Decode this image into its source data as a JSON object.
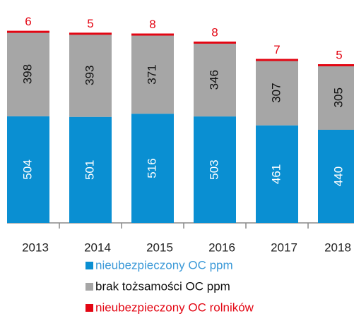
{
  "chart_data": {
    "type": "stacked_bar",
    "categories": [
      "2013",
      "2014",
      "2015",
      "2016",
      "2017",
      "2018"
    ],
    "series": [
      {
        "name": "nieubezpieczony OC ppm",
        "color": "#0a8fd2",
        "values": [
          504,
          501,
          516,
          503,
          461,
          440
        ]
      },
      {
        "name": "brak tożsamości OC ppm",
        "color": "#a6a6a6",
        "values": [
          398,
          393,
          371,
          346,
          307,
          305
        ]
      },
      {
        "name": "nieubezpieczony OC rolników",
        "color": "#e30613",
        "values": [
          6,
          5,
          8,
          8,
          7,
          5
        ]
      }
    ],
    "ylim": [
      0,
      1000
    ]
  }
}
